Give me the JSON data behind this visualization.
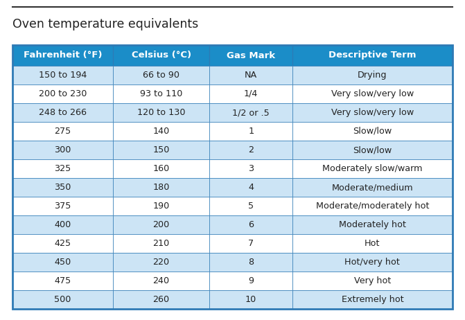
{
  "title": "Oven temperature equivalents",
  "headers": [
    "Fahrenheit (°F)",
    "Celsius (°C)",
    "Gas Mark",
    "Descriptive Term"
  ],
  "rows": [
    [
      "150 to 194",
      "66 to 90",
      "NA",
      "Drying"
    ],
    [
      "200 to 230",
      "93 to 110",
      "1/4",
      "Very slow/very low"
    ],
    [
      "248 to 266",
      "120 to 130",
      "1/2 or .5",
      "Very slow/very low"
    ],
    [
      "275",
      "140",
      "1",
      "Slow/low"
    ],
    [
      "300",
      "150",
      "2",
      "Slow/low"
    ],
    [
      "325",
      "160",
      "3",
      "Moderately slow/warm"
    ],
    [
      "350",
      "180",
      "4",
      "Moderate/medium"
    ],
    [
      "375",
      "190",
      "5",
      "Moderate/moderately hot"
    ],
    [
      "400",
      "200",
      "6",
      "Moderately hot"
    ],
    [
      "425",
      "210",
      "7",
      "Hot"
    ],
    [
      "450",
      "220",
      "8",
      "Hot/very hot"
    ],
    [
      "475",
      "240",
      "9",
      "Very hot"
    ],
    [
      "500",
      "260",
      "10",
      "Extremely hot"
    ]
  ],
  "header_bg": "#1b8dc8",
  "header_text": "#ffffff",
  "row_bg_even": "#cce4f5",
  "row_bg_odd": "#ffffff",
  "border_color": "#2e7ab5",
  "title_color": "#222222",
  "text_color": "#222222",
  "outer_bg": "#ffffff",
  "fig_width": 6.71,
  "fig_height": 4.62,
  "dpi": 100,
  "title_fontsize": 12.5,
  "header_fontsize": 9.5,
  "cell_fontsize": 9.2
}
